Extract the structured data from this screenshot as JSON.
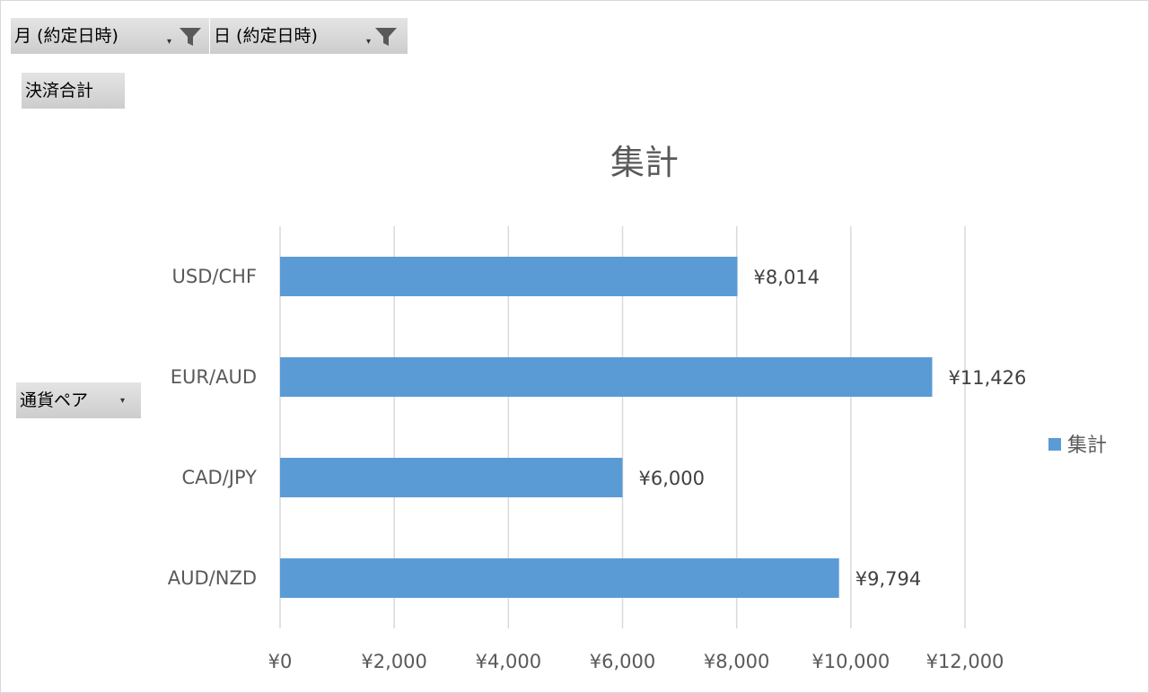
{
  "filters": {
    "month_label": "月 (約定日時)",
    "day_label": "日 (約定日時)"
  },
  "value_field": "決済合計",
  "row_field": "通貨ペア",
  "legend_label": "集計",
  "colors": {
    "bar": "#5b9bd5",
    "gridline": "#d9d9d9",
    "axis_text": "#595959",
    "button_bg": "#d4d4d4"
  },
  "icons": [
    "filter-icon",
    "dropdown-arrow-icon"
  ],
  "chart_data": {
    "type": "bar",
    "orientation": "horizontal",
    "title": "集計",
    "categories": [
      "USD/CHF",
      "EUR/AUD",
      "CAD/JPY",
      "AUD/NZD"
    ],
    "series": [
      {
        "name": "集計",
        "values": [
          8014,
          11426,
          6000,
          9794
        ]
      }
    ],
    "value_labels": [
      "¥8,014",
      "¥11,426",
      "¥6,000",
      "¥9,794"
    ],
    "x_ticks": [
      0,
      2000,
      4000,
      6000,
      8000,
      10000,
      12000
    ],
    "x_tick_labels": [
      "¥0",
      "¥2,000",
      "¥4,000",
      "¥6,000",
      "¥8,000",
      "¥10,000",
      "¥12,000"
    ],
    "xlim": [
      0,
      12000
    ],
    "grid": "vertical",
    "legend_position": "right"
  }
}
